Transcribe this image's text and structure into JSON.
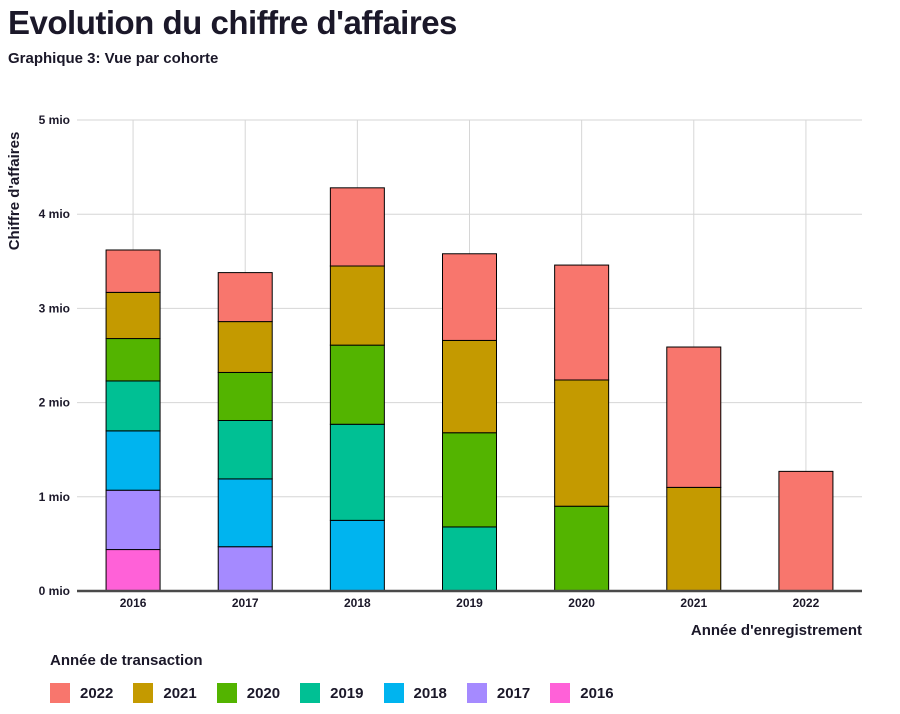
{
  "title": "Evolution du chiffre d'affaires",
  "subtitle": "Graphique 3: Vue par cohorte",
  "chart_data": {
    "type": "bar",
    "stacked": true,
    "xlabel": "Année d'enregistrement",
    "ylabel": "Chiffre d'affaires",
    "ylim": [
      0,
      5
    ],
    "yticks": [
      "0 mio",
      "1 mio",
      "2 mio",
      "3 mio",
      "4 mio",
      "5 mio"
    ],
    "categories": [
      "2016",
      "2017",
      "2018",
      "2019",
      "2020",
      "2021",
      "2022"
    ],
    "grid": true,
    "legend_title": "Année de transaction",
    "legend_position": "bottom",
    "series": [
      {
        "name": "2016",
        "color": "#FF61D8",
        "values": [
          0.44,
          0,
          0,
          0,
          0,
          0,
          0
        ]
      },
      {
        "name": "2017",
        "color": "#A58AFF",
        "values": [
          0.63,
          0.47,
          0,
          0,
          0,
          0,
          0
        ]
      },
      {
        "name": "2018",
        "color": "#00B4EF",
        "values": [
          0.63,
          0.72,
          0.75,
          0,
          0,
          0,
          0
        ]
      },
      {
        "name": "2019",
        "color": "#00C094",
        "values": [
          0.53,
          0.62,
          1.02,
          0.68,
          0,
          0,
          0
        ]
      },
      {
        "name": "2020",
        "color": "#53B400",
        "values": [
          0.45,
          0.51,
          0.84,
          1.0,
          0.9,
          0,
          0
        ]
      },
      {
        "name": "2021",
        "color": "#C49A00",
        "values": [
          0.49,
          0.54,
          0.84,
          0.98,
          1.34,
          1.1,
          0
        ]
      },
      {
        "name": "2022",
        "color": "#F8766D",
        "values": [
          0.45,
          0.52,
          0.83,
          0.92,
          1.22,
          1.49,
          1.27
        ]
      }
    ]
  }
}
